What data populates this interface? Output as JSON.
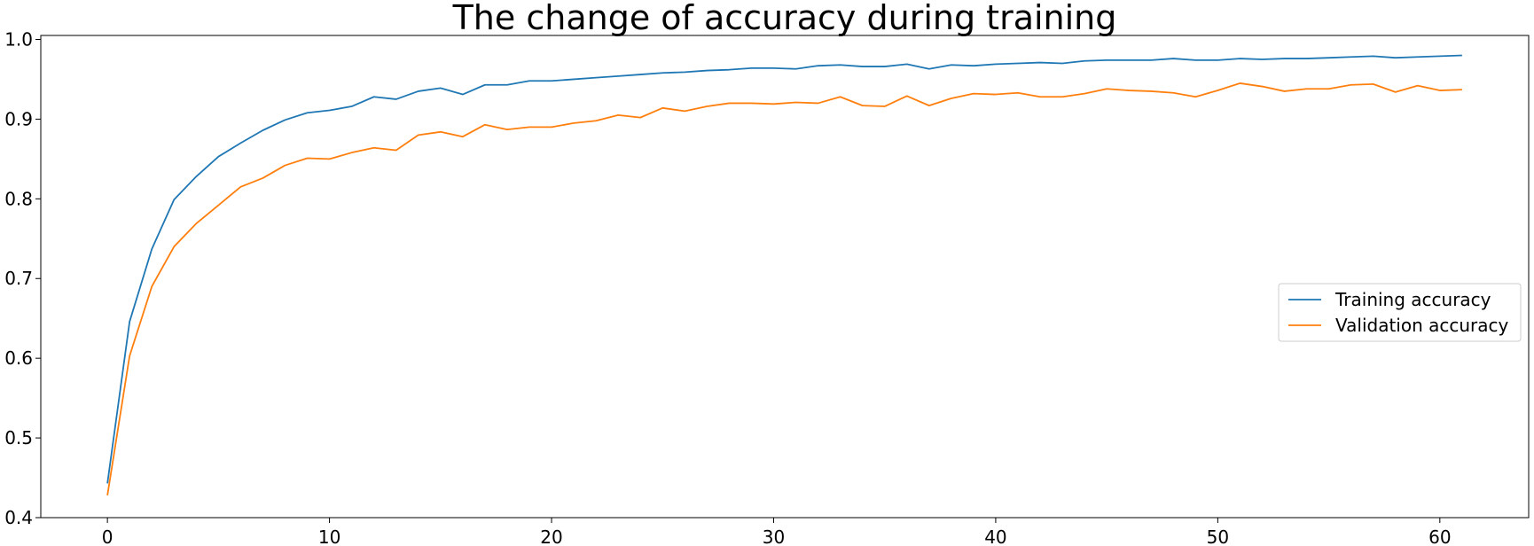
{
  "chart_data": {
    "type": "line",
    "title": "The change of accuracy during training",
    "xlabel": "",
    "ylabel": "",
    "xlim": [
      -3,
      64
    ],
    "ylim": [
      0.4,
      1.005
    ],
    "xticks": [
      0,
      10,
      20,
      30,
      40,
      50,
      60
    ],
    "xtick_labels": [
      "0",
      "10",
      "20",
      "30",
      "40",
      "50",
      "60"
    ],
    "yticks": [
      0.4,
      0.5,
      0.6,
      0.7,
      0.8,
      0.9,
      1.0
    ],
    "ytick_labels": [
      "0.4",
      "0.5",
      "0.6",
      "0.7",
      "0.8",
      "0.9",
      "1.0"
    ],
    "grid": false,
    "legend_position": "center-right",
    "x": [
      0,
      1,
      2,
      3,
      4,
      5,
      6,
      7,
      8,
      9,
      10,
      11,
      12,
      13,
      14,
      15,
      16,
      17,
      18,
      19,
      20,
      21,
      22,
      23,
      24,
      25,
      26,
      27,
      28,
      29,
      30,
      31,
      32,
      33,
      34,
      35,
      36,
      37,
      38,
      39,
      40,
      41,
      42,
      43,
      44,
      45,
      46,
      47,
      48,
      49,
      50,
      51,
      52,
      53,
      54,
      55,
      56,
      57,
      58,
      59,
      60,
      61
    ],
    "series": [
      {
        "name": "Training accuracy",
        "color": "#1f77b4",
        "values": [
          0.443,
          0.646,
          0.737,
          0.799,
          0.828,
          0.853,
          0.87,
          0.886,
          0.899,
          0.908,
          0.911,
          0.916,
          0.928,
          0.925,
          0.935,
          0.939,
          0.931,
          0.943,
          0.943,
          0.948,
          0.948,
          0.95,
          0.952,
          0.954,
          0.956,
          0.958,
          0.959,
          0.961,
          0.962,
          0.964,
          0.964,
          0.963,
          0.967,
          0.968,
          0.966,
          0.966,
          0.969,
          0.963,
          0.968,
          0.967,
          0.969,
          0.97,
          0.971,
          0.97,
          0.973,
          0.974,
          0.974,
          0.974,
          0.976,
          0.974,
          0.974,
          0.976,
          0.975,
          0.976,
          0.976,
          0.977,
          0.978,
          0.979,
          0.977,
          0.978,
          0.979,
          0.98
        ]
      },
      {
        "name": "Validation accuracy",
        "color": "#ff7f0e",
        "values": [
          0.428,
          0.603,
          0.69,
          0.74,
          0.769,
          0.792,
          0.815,
          0.826,
          0.842,
          0.851,
          0.85,
          0.858,
          0.864,
          0.861,
          0.88,
          0.884,
          0.878,
          0.893,
          0.887,
          0.89,
          0.89,
          0.895,
          0.898,
          0.905,
          0.902,
          0.914,
          0.91,
          0.916,
          0.92,
          0.92,
          0.919,
          0.921,
          0.92,
          0.928,
          0.917,
          0.916,
          0.929,
          0.917,
          0.926,
          0.932,
          0.931,
          0.933,
          0.928,
          0.928,
          0.932,
          0.938,
          0.936,
          0.935,
          0.933,
          0.928,
          0.936,
          0.945,
          0.941,
          0.935,
          0.938,
          0.938,
          0.943,
          0.944,
          0.934,
          0.942,
          0.936,
          0.937
        ]
      }
    ]
  }
}
